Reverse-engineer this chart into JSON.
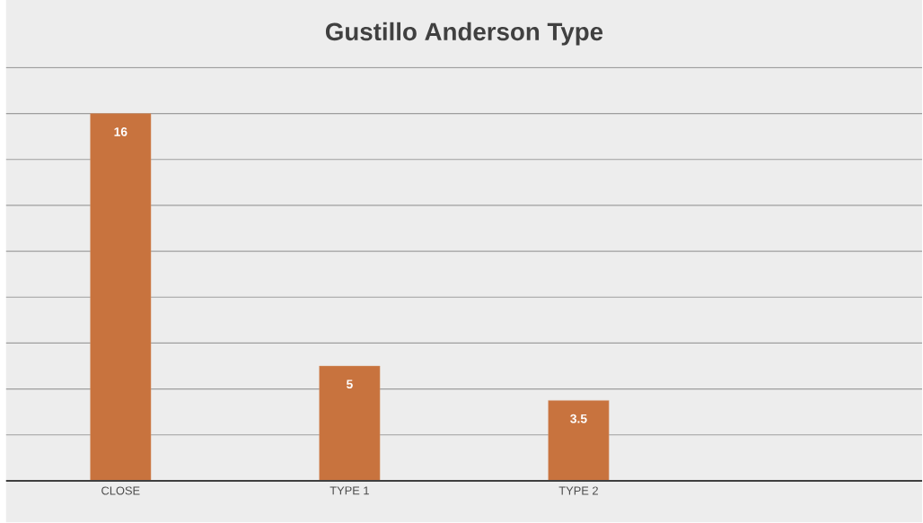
{
  "chart_data": {
    "type": "bar",
    "title": "Gustillo Anderson Type",
    "categories": [
      "CLOSE",
      "TYPE 1",
      "TYPE 2",
      null
    ],
    "values": [
      16,
      5,
      3.5,
      null
    ],
    "color": "#c8733e",
    "ylim": [
      0,
      18
    ],
    "yticks": [
      {
        "value": 0,
        "label": null
      },
      {
        "value": 2,
        "label": null
      },
      {
        "value": 4,
        "label": null
      },
      {
        "value": 6,
        "label": null
      },
      {
        "value": 8,
        "label": null
      },
      {
        "value": 10,
        "label": null
      },
      {
        "value": 12,
        "label": null
      },
      {
        "value": 14,
        "label": null
      },
      {
        "value": 16,
        "label": null
      },
      {
        "value": 18,
        "label": null
      }
    ],
    "tick_labels": "x",
    "grid": "y",
    "data_labels": true
  }
}
